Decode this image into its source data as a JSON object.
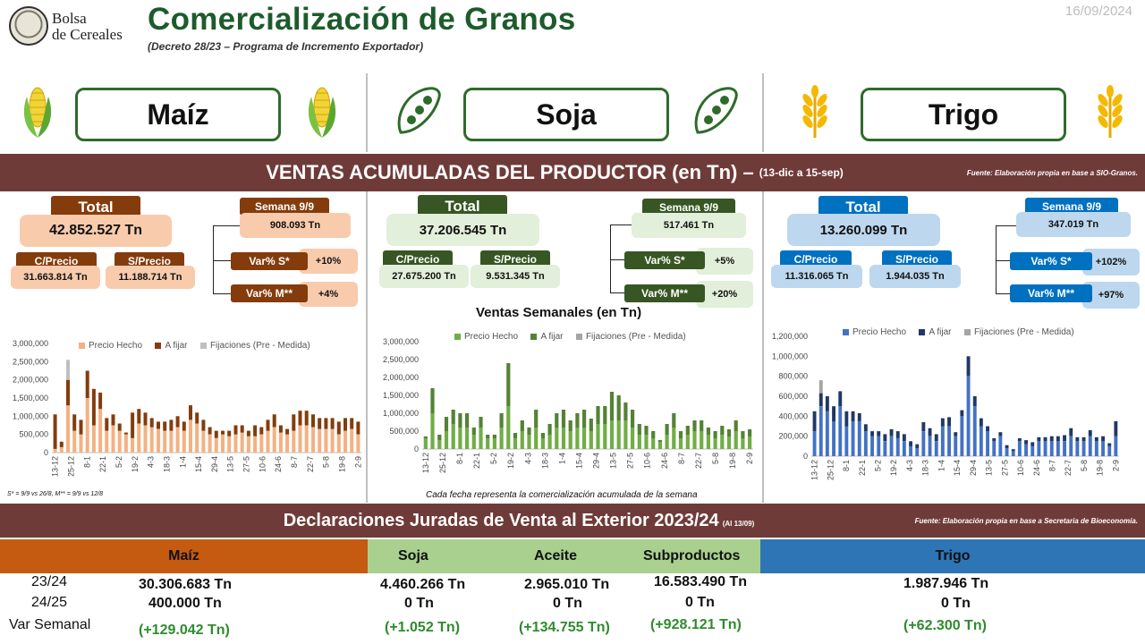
{
  "header": {
    "logo_line1": "Bolsa",
    "logo_line2": "de Cereales",
    "title": "Comercialización de Granos",
    "subtitle": "(Decreto 28/23 – Programa de Incremento Exportador)",
    "date": "16/09/2024"
  },
  "grains": [
    {
      "name": "Maíz",
      "icon": "corn-icon",
      "color": "#8a4a1c"
    },
    {
      "name": "Soja",
      "icon": "soy-pod-icon",
      "color": "#3c5a2a"
    },
    {
      "name": "Trigo",
      "icon": "wheat-icon",
      "color": "#1a73c2"
    }
  ],
  "ventas": {
    "title": "VENTAS ACUMULADAS DEL PRODUCTOR (en Tn) –",
    "period": "(13-dic a 15-sep)",
    "source": "Fuente: Elaboración propia en base a SIO-Granos.",
    "total_label": "Total",
    "cprecio_label": "C/Precio",
    "sprecio_label": "S/Precio",
    "semana_label": "Semana 9/9",
    "vars_label": "Var% S*",
    "varm_label": "Var% M**",
    "maiz": {
      "total": "42.852.527 Tn",
      "cprecio": "31.663.814 Tn",
      "sprecio": "11.188.714 Tn",
      "semana": "908.093 Tn",
      "vars": "+10%",
      "varm": "+4%"
    },
    "soja": {
      "total": "37.206.545 Tn",
      "cprecio": "27.675.200 Tn",
      "sprecio": "9.531.345 Tn",
      "semana": "517.461 Tn",
      "vars": "+5%",
      "varm": "+20%"
    },
    "trigo": {
      "total": "13.260.099 Tn",
      "cprecio": "11.316.065 Tn",
      "sprecio": "1.944.035 Tn",
      "semana": "347.019 Tn",
      "vars": "+102%",
      "varm": "+97%"
    },
    "footnote": "S* = 9/9 vs 26/8, M** = 9/9 vs 12/8",
    "chart_title": "Ventas Semanales (en Tn)",
    "chart_note": "Cada fecha representa la comercialización acumulada de la semana"
  },
  "chart_data": [
    {
      "type": "bar",
      "stacked": true,
      "title": "",
      "series_names": [
        "Precio Hecho",
        "A fijar",
        "Fijaciones (Pre - Medida)"
      ],
      "colors": [
        "#f4b183",
        "#843c0c",
        "#bfbfbf"
      ],
      "ylim": [
        0,
        3000000
      ],
      "yticks": [
        "0",
        "500,000",
        "1,000,000",
        "1,500,000",
        "2,000,000",
        "2,500,000",
        "3,000,000"
      ],
      "xticklabels": [
        "13-12",
        "25-12",
        "8-1",
        "22-1",
        "5-2",
        "19-2",
        "4-3",
        "18-3",
        "1-4",
        "15-4",
        "29-4",
        "13-5",
        "27-5",
        "10-6",
        "24-6",
        "8-7",
        "22-7",
        "5-8",
        "19-8",
        "2-9"
      ],
      "precio_hecho": [
        100000,
        150000,
        1300000,
        600000,
        500000,
        1500000,
        750000,
        1200000,
        600000,
        750000,
        600000,
        500000,
        400000,
        800000,
        750000,
        700000,
        650000,
        600000,
        600000,
        700000,
        600000,
        900000,
        800000,
        600000,
        500000,
        400000,
        500000,
        450000,
        500000,
        550000,
        450000,
        450000,
        500000,
        600000,
        700000,
        550000,
        500000,
        600000,
        750000,
        750000,
        700000,
        650000,
        650000,
        650000,
        500000,
        600000,
        650000,
        500000
      ],
      "a_fijar": [
        950000,
        150000,
        700000,
        450000,
        400000,
        750000,
        1000000,
        450000,
        350000,
        300000,
        200000,
        50000,
        700000,
        400000,
        350000,
        250000,
        200000,
        250000,
        300000,
        300000,
        250000,
        400000,
        300000,
        300000,
        200000,
        200000,
        100000,
        150000,
        250000,
        200000,
        150000,
        300000,
        200000,
        300000,
        350000,
        200000,
        150000,
        450000,
        400000,
        400000,
        350000,
        300000,
        300000,
        300000,
        350000,
        350000,
        300000,
        350000
      ],
      "fijaciones": [
        0,
        0,
        550000,
        0,
        0,
        0,
        0,
        0,
        0,
        0,
        0,
        0,
        0,
        0,
        0,
        0,
        0,
        0,
        0,
        0,
        0,
        0,
        0,
        0,
        0,
        0,
        0,
        0,
        0,
        0,
        0,
        0,
        0,
        0,
        0,
        0,
        0,
        0,
        0,
        0,
        0,
        0,
        0,
        0,
        0,
        0,
        0,
        0
      ]
    },
    {
      "type": "bar",
      "stacked": true,
      "title": "Ventas Semanales (en Tn)",
      "series_names": [
        "Precio Hecho",
        "A fijar",
        "Fijaciones (Pre - Medida)"
      ],
      "colors": [
        "#70ad47",
        "#548235",
        "#a5a5a5"
      ],
      "ylim": [
        0,
        3000000
      ],
      "yticks": [
        "0",
        "500,000",
        "1,000,000",
        "1,500,000",
        "2,000,000",
        "2,500,000",
        "3,000,000"
      ],
      "xticklabels": [
        "13-12",
        "25-12",
        "8-1",
        "22-1",
        "5-2",
        "19-2",
        "4-3",
        "18-3",
        "1-4",
        "15-4",
        "29-4",
        "13-5",
        "27-5",
        "10-6",
        "24-6",
        "8-7",
        "22-7",
        "5-8",
        "19-8",
        "2-9"
      ],
      "precio_hecho": [
        300000,
        1000000,
        250000,
        500000,
        700000,
        600000,
        600000,
        400000,
        600000,
        300000,
        300000,
        600000,
        1200000,
        300000,
        500000,
        400000,
        600000,
        300000,
        400000,
        600000,
        600000,
        500000,
        600000,
        600000,
        500000,
        700000,
        700000,
        800000,
        800000,
        800000,
        600000,
        400000,
        400000,
        300000,
        200000,
        400000,
        600000,
        300000,
        400000,
        500000,
        500000,
        400000,
        300000,
        400000,
        350000,
        500000,
        300000,
        350000
      ],
      "a_fijar": [
        50000,
        700000,
        150000,
        400000,
        400000,
        400000,
        400000,
        200000,
        300000,
        100000,
        100000,
        400000,
        1200000,
        150000,
        300000,
        200000,
        500000,
        150000,
        300000,
        400000,
        500000,
        300000,
        400000,
        500000,
        350000,
        500000,
        500000,
        800000,
        700000,
        500000,
        500000,
        300000,
        250000,
        200000,
        50000,
        300000,
        400000,
        200000,
        250000,
        300000,
        300000,
        200000,
        200000,
        250000,
        200000,
        300000,
        200000,
        200000
      ],
      "fijaciones": [
        0,
        0,
        0,
        0,
        0,
        0,
        0,
        0,
        0,
        0,
        0,
        0,
        0,
        0,
        0,
        0,
        0,
        0,
        0,
        0,
        0,
        0,
        0,
        0,
        0,
        0,
        0,
        0,
        0,
        0,
        0,
        0,
        0,
        0,
        0,
        0,
        0,
        0,
        0,
        0,
        0,
        0,
        0,
        0,
        0,
        0,
        0,
        0
      ]
    },
    {
      "type": "bar",
      "stacked": true,
      "title": "",
      "series_names": [
        "Precio Hecho",
        "A fijar",
        "Fijaciones (Pre - Medida)"
      ],
      "colors": [
        "#4472c4",
        "#203864",
        "#a5a5a5"
      ],
      "ylim": [
        0,
        1200000
      ],
      "yticks": [
        "0",
        "200,000",
        "400,000",
        "600,000",
        "800,000",
        "1,000,000",
        "1,200,000"
      ],
      "xticklabels": [
        "13-12",
        "25-12",
        "8-1",
        "22-1",
        "5-2",
        "19-2",
        "4-3",
        "18-3",
        "1-4",
        "15-4",
        "29-4",
        "13-5",
        "27-5",
        "10-6",
        "24-6",
        "8-7",
        "22-7",
        "5-8",
        "19-8",
        "2-9"
      ],
      "precio_hecho": [
        250000,
        500000,
        450000,
        350000,
        500000,
        300000,
        350000,
        350000,
        250000,
        200000,
        200000,
        150000,
        200000,
        180000,
        150000,
        100000,
        80000,
        250000,
        200000,
        150000,
        300000,
        300000,
        200000,
        400000,
        800000,
        500000,
        300000,
        250000,
        150000,
        200000,
        80000,
        50000,
        150000,
        120000,
        100000,
        150000,
        150000,
        150000,
        150000,
        150000,
        200000,
        150000,
        150000,
        200000,
        150000,
        150000,
        100000,
        200000
      ],
      "a_fijar": [
        200000,
        130000,
        150000,
        150000,
        150000,
        150000,
        100000,
        80000,
        70000,
        50000,
        50000,
        70000,
        70000,
        70000,
        70000,
        50000,
        40000,
        90000,
        80000,
        70000,
        80000,
        90000,
        40000,
        60000,
        200000,
        100000,
        80000,
        50000,
        30000,
        40000,
        30000,
        20000,
        30000,
        40000,
        40000,
        40000,
        40000,
        50000,
        50000,
        60000,
        80000,
        40000,
        40000,
        60000,
        40000,
        50000,
        30000,
        150000
      ],
      "fijaciones": [
        0,
        130000,
        0,
        0,
        0,
        0,
        0,
        0,
        0,
        0,
        0,
        0,
        0,
        0,
        0,
        0,
        0,
        0,
        0,
        0,
        0,
        0,
        0,
        0,
        0,
        0,
        0,
        0,
        0,
        0,
        0,
        0,
        0,
        0,
        0,
        0,
        0,
        0,
        0,
        0,
        0,
        0,
        0,
        0,
        0,
        0,
        0,
        0
      ]
    }
  ],
  "djve": {
    "title": "Declaraciones Juradas de Venta al Exterior 2023/24",
    "asof": "(Al 13/09)",
    "source": "Fuente: Elaboración propia en base a Secretaria de Bioeconomía.",
    "headers": {
      "maiz": "Maíz",
      "soja": "Soja",
      "aceite": "Aceite",
      "subproductos": "Subproductos",
      "trigo": "Trigo"
    },
    "row_labels": [
      "23/24",
      "24/25",
      "Var Semanal"
    ],
    "maiz": [
      "30.306.683 Tn",
      "400.000 Tn",
      "(+129.042 Tn)"
    ],
    "soja": [
      "4.460.266 Tn",
      "0 Tn",
      "(+1.052 Tn)"
    ],
    "aceite": [
      "2.965.010 Tn",
      "0 Tn",
      "(+134.755 Tn)"
    ],
    "subproductos": [
      "16.583.490 Tn",
      "0 Tn",
      "(+928.121 Tn)"
    ],
    "trigo": [
      "1.987.946 Tn",
      "0 Tn",
      "(+62.300 Tn)"
    ]
  }
}
